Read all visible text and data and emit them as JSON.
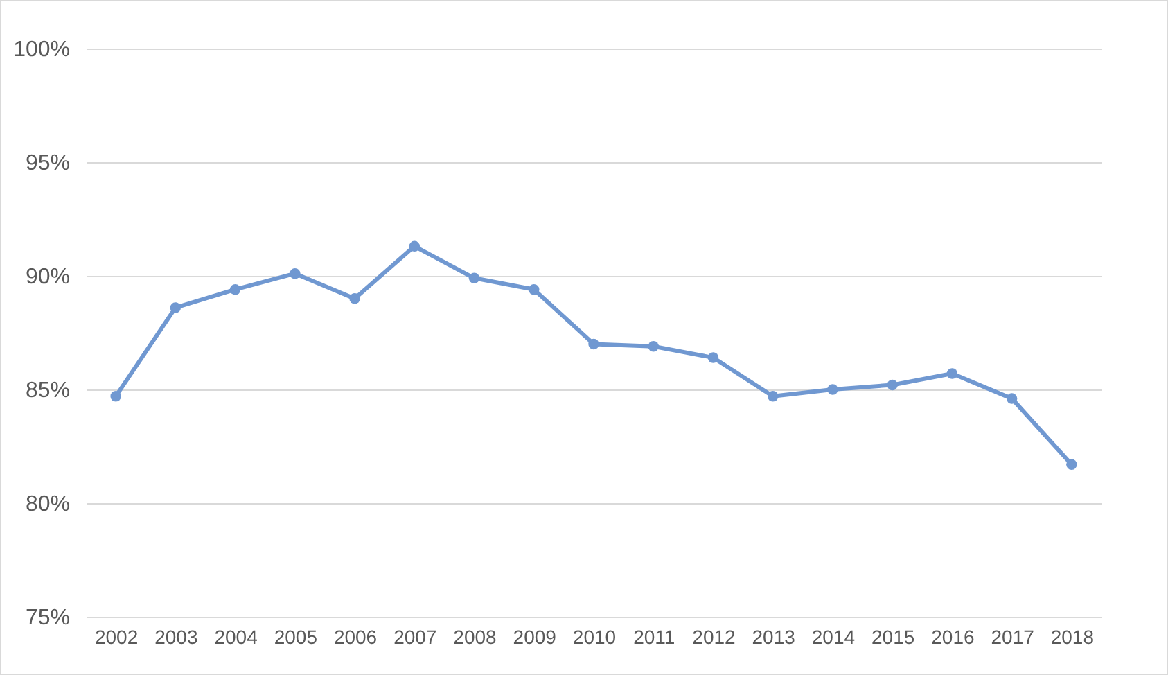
{
  "chart_data": {
    "type": "line",
    "categories": [
      "2002",
      "2003",
      "2004",
      "2005",
      "2006",
      "2007",
      "2008",
      "2009",
      "2010",
      "2011",
      "2012",
      "2013",
      "2014",
      "2015",
      "2016",
      "2017",
      "2018"
    ],
    "series": [
      {
        "color": "#7098d1",
        "values": [
          84.7,
          88.6,
          89.4,
          90.1,
          89.0,
          91.3,
          89.9,
          89.4,
          87.0,
          86.9,
          86.4,
          84.7,
          85.0,
          85.2,
          85.7,
          84.6,
          81.7
        ]
      }
    ],
    "ylim": [
      75,
      100
    ],
    "yticks": [
      {
        "value": 75,
        "label": "75%"
      },
      {
        "value": 80,
        "label": "80%"
      },
      {
        "value": 85,
        "label": "85%"
      },
      {
        "value": 90,
        "label": "90%"
      },
      {
        "value": 95,
        "label": "95%"
      },
      {
        "value": 100,
        "label": "100%"
      }
    ],
    "grid": "y",
    "marker": "circle",
    "line_style": "solid"
  }
}
